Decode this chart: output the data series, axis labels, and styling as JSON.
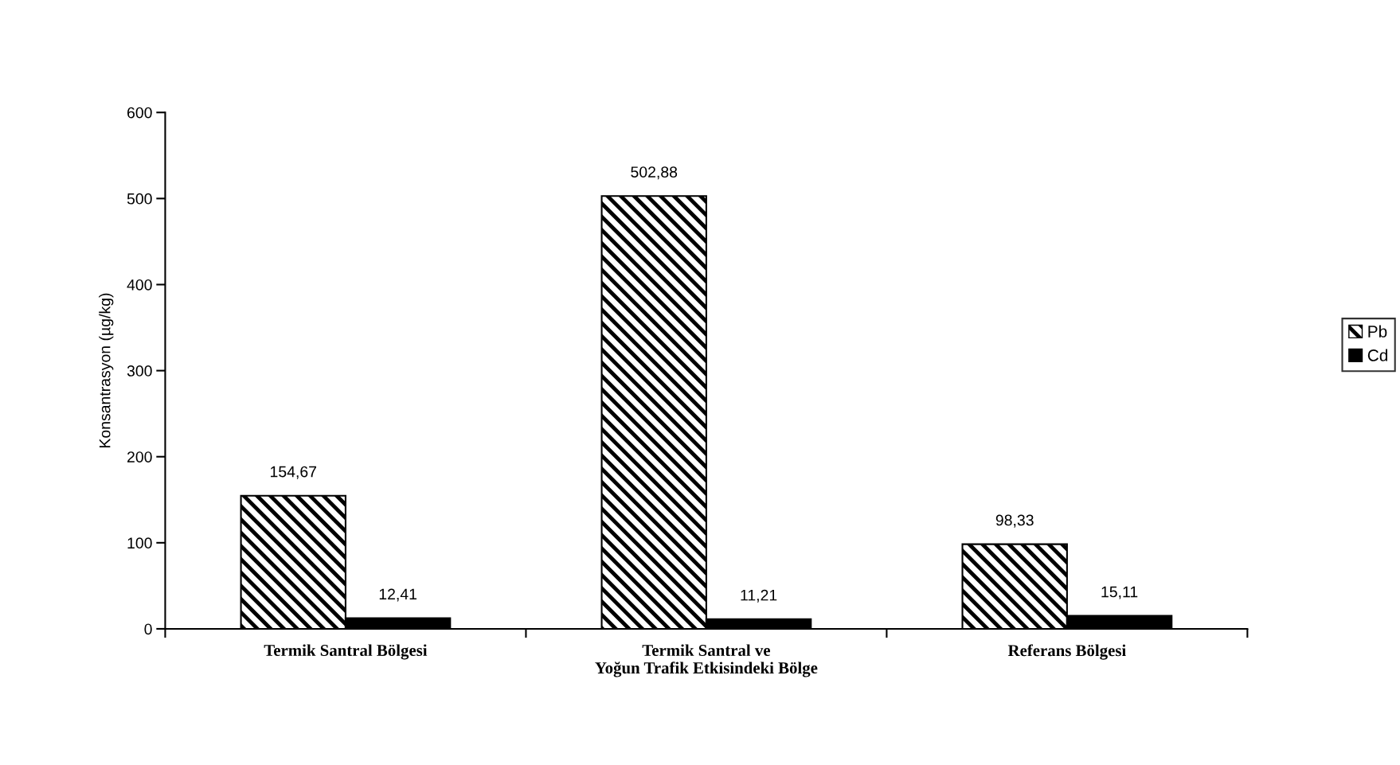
{
  "chart_data": {
    "type": "bar",
    "ylabel": "Konsantrasyon (µg/kg)",
    "categories": [
      "Termik Santral Bölgesi",
      "Termik Santral ve\nYoğun Trafik Etkisindeki Bölge",
      "Referans Bölgesi"
    ],
    "series": [
      {
        "name": "Pb",
        "color": "#000000",
        "values": [
          154.67,
          502.88,
          98.33
        ],
        "value_labels": [
          "154,67",
          "502,88",
          "98,33"
        ]
      },
      {
        "name": "Cd",
        "color": "#000000",
        "values": [
          12.41,
          11.21,
          15.11
        ],
        "value_labels": [
          "12,41",
          "11,21",
          "15,11"
        ]
      }
    ],
    "ylim": [
      0,
      600
    ],
    "yticks": [
      0,
      100,
      200,
      300,
      400,
      500,
      600
    ],
    "grid": false,
    "legend": "right"
  }
}
